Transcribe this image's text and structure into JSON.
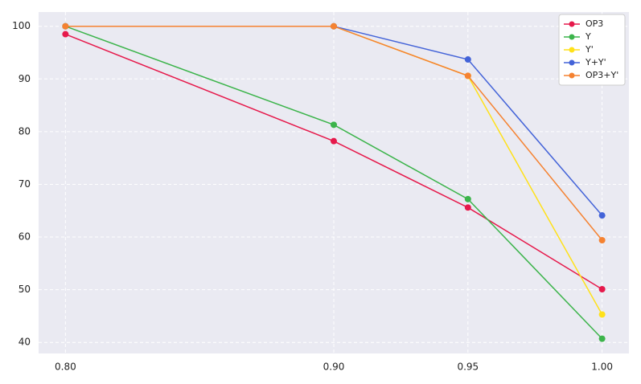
{
  "chart_data": {
    "type": "line",
    "x": [
      0.8,
      0.9,
      0.95,
      1.0
    ],
    "series": [
      {
        "name": "OP3",
        "color": "#e6194b",
        "values": [
          98.5,
          78.2,
          65.6,
          50.1
        ]
      },
      {
        "name": "Y",
        "color": "#3cb44b",
        "values": [
          100,
          81.3,
          67.2,
          40.7
        ]
      },
      {
        "name": "Y'",
        "color": "#ffe119",
        "values": [
          100,
          100,
          90.6,
          45.3
        ]
      },
      {
        "name": "Y+Y'",
        "color": "#4363d8",
        "values": [
          100,
          100,
          93.7,
          64.1
        ]
      },
      {
        "name": "OP3+Y'",
        "color": "#f58231",
        "values": [
          100,
          100,
          90.6,
          59.4
        ]
      }
    ],
    "xlim": [
      0.79,
      1.01
    ],
    "xticks": [
      {
        "value": 0.8,
        "label": "0.80"
      },
      {
        "value": 0.9,
        "label": "0.90"
      },
      {
        "value": 0.95,
        "label": "0.95"
      },
      {
        "value": 1.0,
        "label": "1.00"
      }
    ],
    "ylim": [
      37.9,
      102.7
    ],
    "yticks": [
      40,
      50,
      60,
      70,
      80,
      90,
      100
    ],
    "grid": true,
    "legend": "upper right"
  }
}
